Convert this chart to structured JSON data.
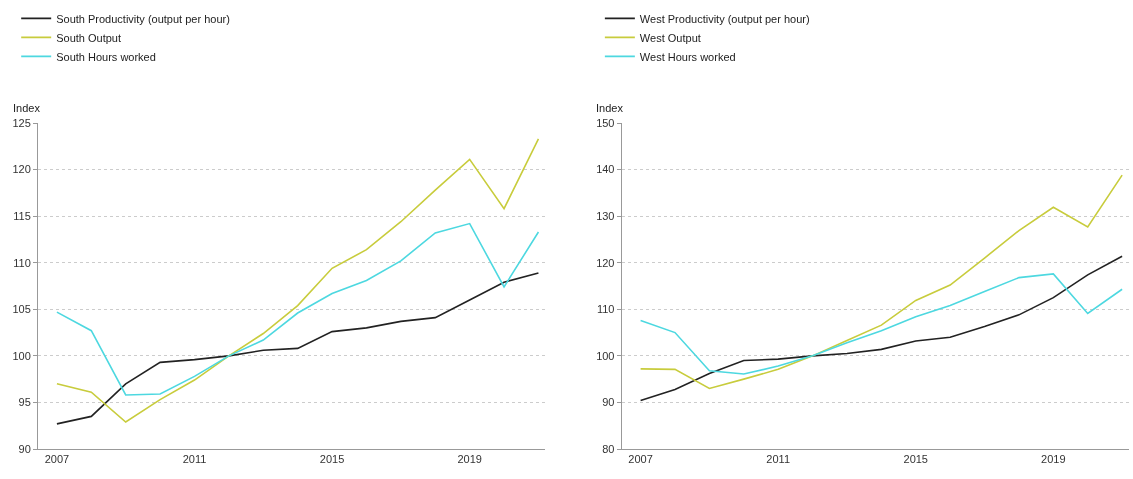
{
  "chart_data": [
    {
      "type": "line",
      "ylabel": "Index",
      "x": [
        2007,
        2008,
        2009,
        2010,
        2011,
        2012,
        2013,
        2014,
        2015,
        2016,
        2017,
        2018,
        2019,
        2020,
        2021
      ],
      "xlim": [
        2006.45,
        2021.2
      ],
      "xticks": [
        2007,
        2011,
        2015,
        2019
      ],
      "ylim": [
        90,
        125
      ],
      "yticks": [
        90,
        95,
        100,
        105,
        110,
        115,
        120,
        125
      ],
      "grid": "y",
      "legend": "top left",
      "marker": "none",
      "line_style": "solid",
      "series": [
        {
          "name": "South Productivity (output per hour)",
          "color": "#222222",
          "values": [
            92.7,
            93.5,
            97.0,
            99.3,
            99.6,
            100,
            100.6,
            100.8,
            102.6,
            103.0,
            103.7,
            104.1,
            106.0,
            107.9,
            108.9
          ]
        },
        {
          "name": "South Output",
          "color": "#c8cc3c",
          "values": [
            97.0,
            96.1,
            92.9,
            95.3,
            97.4,
            100,
            102.4,
            105.4,
            109.4,
            111.4,
            114.4,
            117.8,
            121.1,
            115.8,
            123.3
          ]
        },
        {
          "name": "South Hours worked",
          "color": "#4dd8e0",
          "values": [
            104.7,
            102.7,
            95.8,
            95.9,
            97.8,
            100,
            101.7,
            104.6,
            106.7,
            108.1,
            110.2,
            113.2,
            114.2,
            107.4,
            113.3
          ]
        }
      ]
    },
    {
      "type": "line",
      "ylabel": "Index",
      "x": [
        2007,
        2008,
        2009,
        2010,
        2011,
        2012,
        2013,
        2014,
        2015,
        2016,
        2017,
        2018,
        2019,
        2020,
        2021
      ],
      "xlim": [
        2006.45,
        2021.2
      ],
      "xticks": [
        2007,
        2011,
        2015,
        2019
      ],
      "ylim": [
        80,
        150
      ],
      "yticks": [
        80,
        90,
        100,
        110,
        120,
        130,
        140,
        150
      ],
      "grid": "y",
      "legend": "top left",
      "marker": "none",
      "line_style": "solid",
      "series": [
        {
          "name": "West Productivity (output per hour)",
          "color": "#222222",
          "values": [
            90.4,
            92.8,
            96.2,
            99.0,
            99.3,
            100,
            100.5,
            101.4,
            103.2,
            104.0,
            106.3,
            108.8,
            112.5,
            117.4,
            121.4
          ]
        },
        {
          "name": "West Output",
          "color": "#c8cc3c",
          "values": [
            97.2,
            97.1,
            93.0,
            95.0,
            97.1,
            100,
            103.3,
            106.6,
            111.9,
            115.2,
            121.0,
            126.9,
            131.9,
            127.7,
            138.8
          ]
        },
        {
          "name": "West Hours worked",
          "color": "#4dd8e0",
          "values": [
            107.6,
            105.0,
            96.8,
            96.1,
            97.8,
            100,
            102.8,
            105.4,
            108.4,
            110.8,
            113.8,
            116.8,
            117.6,
            109.1,
            114.3
          ]
        }
      ]
    }
  ]
}
